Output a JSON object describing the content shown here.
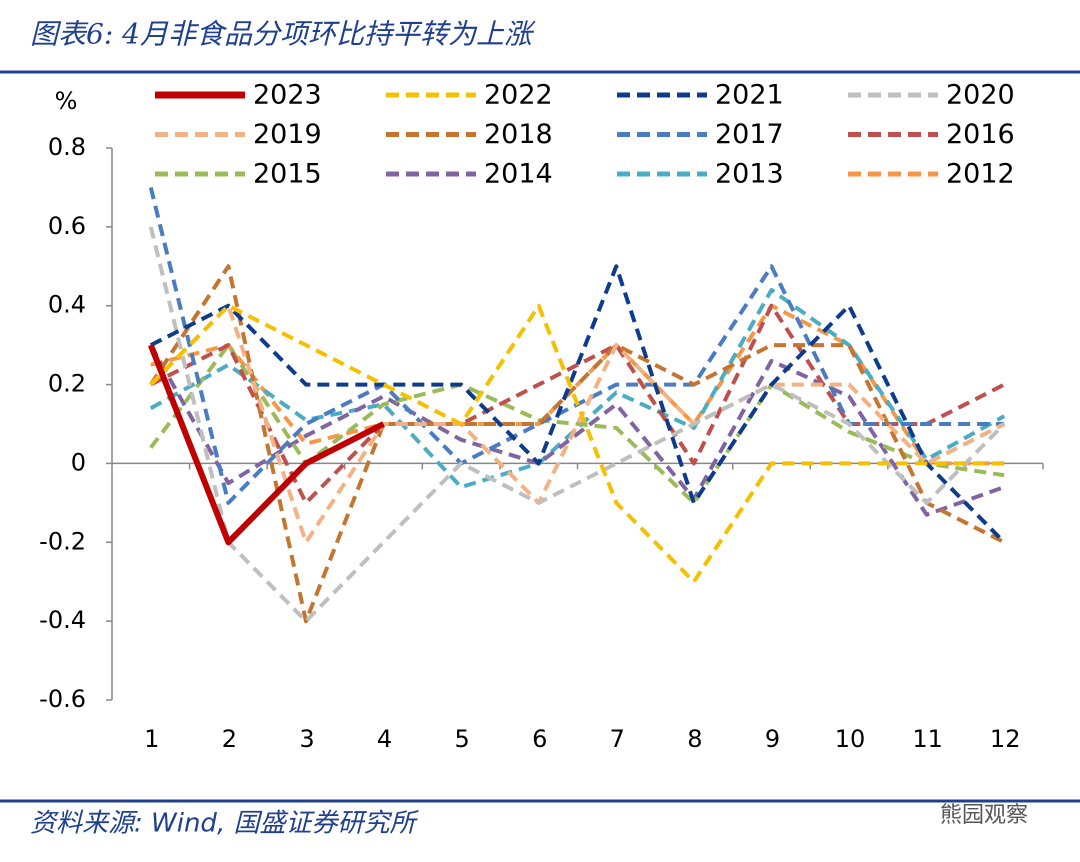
{
  "chart_data": {
    "type": "line",
    "title": "图表6: 4月非食品分项环比持平转为上涨",
    "y_label": "%",
    "source": "资料来源: Wind, 国盛证券研究所",
    "watermark": "熊园观察",
    "categories": [
      "1",
      "2",
      "3",
      "4",
      "5",
      "6",
      "7",
      "8",
      "9",
      "10",
      "11",
      "12"
    ],
    "ylim": [
      -0.6,
      0.8
    ],
    "yticks": [
      -0.6,
      -0.4,
      -0.2,
      0,
      0.2,
      0.4,
      0.6,
      0.8
    ],
    "series": [
      {
        "name": "2023",
        "color": "#c00000",
        "dashed": false,
        "values": [
          0.3,
          -0.2,
          0.0,
          0.1,
          null,
          null,
          null,
          null,
          null,
          null,
          null,
          null
        ]
      },
      {
        "name": "2022",
        "color": "#f5c000",
        "dashed": true,
        "values": [
          0.2,
          0.4,
          0.3,
          0.2,
          0.1,
          0.4,
          -0.1,
          -0.3,
          0,
          0,
          0,
          0
        ]
      },
      {
        "name": "2021",
        "color": "#0e3b8c",
        "dashed": true,
        "values": [
          0.3,
          0.4,
          0.2,
          0.2,
          0.2,
          0,
          0.5,
          -0.1,
          0.2,
          0.4,
          0,
          -0.2
        ]
      },
      {
        "name": "2020",
        "color": "#bfbfbf",
        "dashed": true,
        "values": [
          0.6,
          -0.2,
          -0.4,
          -0.2,
          0,
          -0.1,
          0,
          0.1,
          0.2,
          0.1,
          -0.1,
          0.1
        ]
      },
      {
        "name": "2019",
        "color": "#f4b183",
        "dashed": true,
        "values": [
          0.2,
          0.4,
          -0.2,
          0.1,
          0.1,
          -0.1,
          0.3,
          0.1,
          0.2,
          0.2,
          0,
          0.1
        ]
      },
      {
        "name": "2018",
        "color": "#c5752f",
        "dashed": true,
        "values": [
          0.2,
          0.5,
          -0.4,
          0.1,
          0.1,
          0.1,
          0.3,
          0.2,
          0.3,
          0.3,
          -0.1,
          -0.2
        ]
      },
      {
        "name": "2017",
        "color": "#4a7cc2",
        "dashed": true,
        "values": [
          0.7,
          -0.1,
          0.1,
          0.2,
          0,
          0.1,
          0.2,
          0.2,
          0.5,
          0.1,
          0.1,
          0.1
        ]
      },
      {
        "name": "2016",
        "color": "#c0504d",
        "dashed": true,
        "values": [
          0.2,
          0.3,
          -0.1,
          0.1,
          0.1,
          0.2,
          0.3,
          0,
          0.4,
          0.1,
          0.1,
          0.2
        ]
      },
      {
        "name": "2015",
        "color": "#9bbb59",
        "dashed": true,
        "values": [
          0.04,
          0.3,
          0,
          0.15,
          0.2,
          0.11,
          0.09,
          -0.1,
          0.2,
          0.08,
          0,
          -0.03
        ]
      },
      {
        "name": "2014",
        "color": "#8064a2",
        "dashed": true,
        "values": [
          0.3,
          -0.05,
          0.07,
          0.17,
          0.06,
          0,
          0.15,
          -0.09,
          0.26,
          0.17,
          -0.13,
          -0.06
        ]
      },
      {
        "name": "2013",
        "color": "#4bacc6",
        "dashed": true,
        "values": [
          0.14,
          0.25,
          0.11,
          0.15,
          -0.06,
          0,
          0.18,
          0.09,
          0.44,
          0.3,
          0.01,
          0.12
        ]
      },
      {
        "name": "2012",
        "color": "#f79646",
        "dashed": true,
        "values": [
          0.25,
          0.3,
          0.05,
          0.1,
          0.1,
          0.1,
          0.3,
          0.1,
          0.4,
          0.3,
          0,
          0
        ]
      }
    ]
  }
}
